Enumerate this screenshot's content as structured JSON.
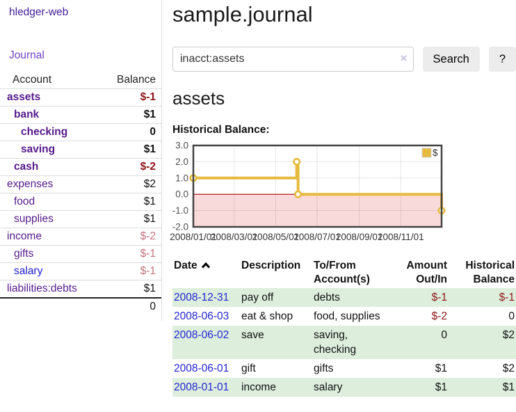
{
  "sidebar": {
    "brand": "hledger-web",
    "nav": {
      "journal_label": "Journal"
    },
    "accounts_table": {
      "headers": {
        "account": "Account",
        "balance": "Balance"
      },
      "rows": [
        {
          "name": "assets",
          "indent": 1,
          "balance": "$-1",
          "emphasized": true
        },
        {
          "name": "bank",
          "indent": 2,
          "balance": "$1",
          "emphasized": true
        },
        {
          "name": "checking",
          "indent": 3,
          "balance": "0",
          "emphasized": true
        },
        {
          "name": "saving",
          "indent": 3,
          "balance": "$1",
          "emphasized": true
        },
        {
          "name": "cash",
          "indent": 2,
          "balance": "$-2",
          "emphasized": true
        },
        {
          "name": "expenses",
          "indent": 1,
          "balance": "$2",
          "emphasized": false
        },
        {
          "name": "food",
          "indent": 2,
          "balance": "$1",
          "emphasized": false
        },
        {
          "name": "supplies",
          "indent": 2,
          "balance": "$1",
          "emphasized": false
        },
        {
          "name": "income",
          "indent": 1,
          "balance": "$-2",
          "emphasized": false
        },
        {
          "name": "gifts",
          "indent": 2,
          "balance": "$-1",
          "emphasized": false
        },
        {
          "name": "salary",
          "indent": 2,
          "balance": "$-1",
          "emphasized": false,
          "link_variant": "blue"
        },
        {
          "name": "liabilities:debts",
          "indent": 1,
          "balance": "$1",
          "emphasized": false
        }
      ],
      "total": "0"
    }
  },
  "header": {
    "title": "sample.journal"
  },
  "search": {
    "value": "inacct:assets",
    "clear_icon": "×",
    "button_label": "Search",
    "help_label": "?"
  },
  "account_page": {
    "heading": "assets",
    "chart_label": "Historical Balance:"
  },
  "chart_data": {
    "type": "line",
    "step": true,
    "title": "Historical Balance:",
    "x_range": [
      "2008-01-01",
      "2008-12-31"
    ],
    "ylim": [
      -2,
      3
    ],
    "y_ticks": [
      {
        "v": 3,
        "label": "3.0"
      },
      {
        "v": 2,
        "label": "2.0"
      },
      {
        "v": 1,
        "label": "1.0"
      },
      {
        "v": 0,
        "label": "0.0"
      },
      {
        "v": -1,
        "label": "-1.0"
      },
      {
        "v": -2,
        "label": "-2.0"
      }
    ],
    "x_ticks": [
      {
        "date": "2008-01-01",
        "label": "2008/01/01"
      },
      {
        "date": "2008-03-01",
        "label": "2008/03/01"
      },
      {
        "date": "2008-05-01",
        "label": "2008/05/01"
      },
      {
        "date": "2008-07-01",
        "label": "2008/07/01"
      },
      {
        "date": "2008-09-01",
        "label": "2008/09/01"
      },
      {
        "date": "2008-11-01",
        "label": "2008/11/01"
      }
    ],
    "series": [
      {
        "name": "$",
        "color": "#e6ba3c",
        "points": [
          [
            "2008-01-01",
            1
          ],
          [
            "2008-06-01",
            2
          ],
          [
            "2008-06-03",
            0
          ],
          [
            "2008-12-31",
            -1
          ]
        ]
      }
    ],
    "grid": true,
    "legend_position": "top-right",
    "negative_region_fill": "#f9dada",
    "zero_line_color": "#a40000"
  },
  "register_table": {
    "headers": {
      "date": "Date",
      "description": "Description",
      "tofrom": "To/From Account(s)",
      "amount": "Amount Out/In",
      "balance": "Historical Balance"
    },
    "rows": [
      {
        "date": "2008-12-31",
        "description": "pay off",
        "accounts": "debts",
        "amount": "$-1",
        "balance": "$-1"
      },
      {
        "date": "2008-06-03",
        "description": "eat & shop",
        "accounts": "food, supplies",
        "amount": "$-2",
        "balance": "0"
      },
      {
        "date": "2008-06-02",
        "description": "save",
        "accounts": "saving, checking",
        "amount": "0",
        "balance": "$2"
      },
      {
        "date": "2008-06-01",
        "description": "gift",
        "accounts": "gifts",
        "amount": "$1",
        "balance": "$2"
      },
      {
        "date": "2008-01-01",
        "description": "income",
        "accounts": "salary",
        "amount": "$1",
        "balance": "$1"
      }
    ]
  },
  "colors": {
    "purple_link": "#551a8b",
    "brand_purple": "#42209a",
    "nav_purple": "#6f42c1",
    "blue_link": "#2424d4",
    "negative_strong": "#8e1515",
    "negative_dim": "#c4717d",
    "row_green": "#ddeedd",
    "series_gold": "#e6ba3c",
    "negative_fill": "#f9dada",
    "zero_line": "#a40000",
    "button_bg": "#ececec"
  }
}
